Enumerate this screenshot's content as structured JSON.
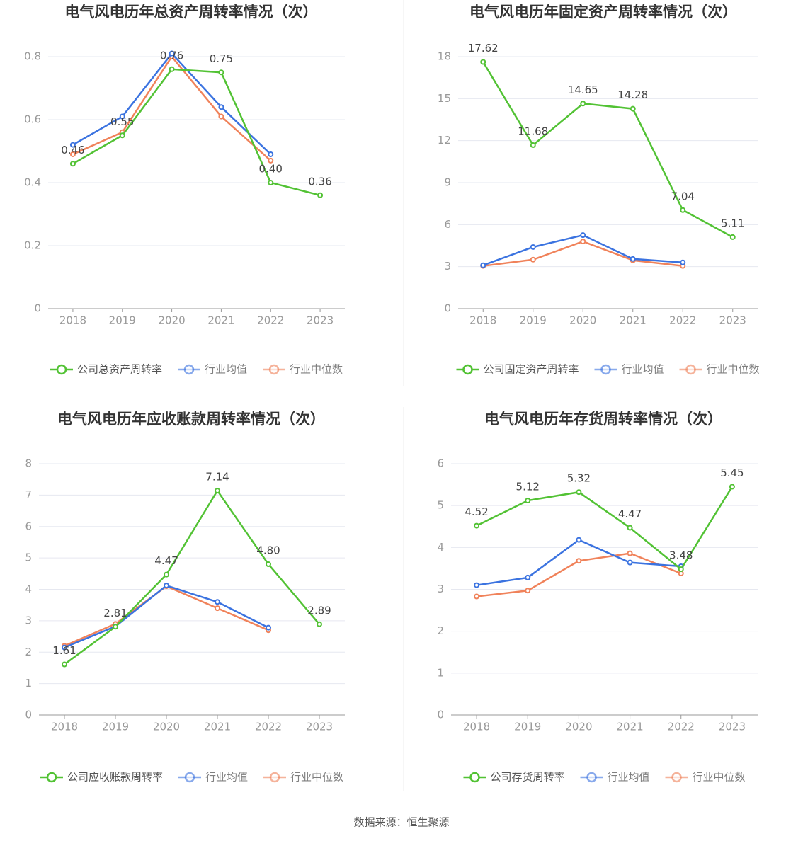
{
  "chart_data": [
    {
      "type": "line",
      "title": "电气风电历年总资产周转率情况（次）",
      "categories": [
        "2018",
        "2019",
        "2020",
        "2021",
        "2022",
        "2023"
      ],
      "series": [
        {
          "name": "公司总资产周转率",
          "color": "#52c234",
          "values": [
            0.46,
            0.55,
            0.76,
            0.75,
            0.4,
            0.36
          ],
          "value_labels": [
            "0.46",
            "0.55",
            "0.76",
            "0.75",
            "0.40",
            "0.36"
          ]
        },
        {
          "name": "行业均值",
          "color": "#3b73e0",
          "values": [
            0.52,
            0.61,
            0.81,
            0.64,
            0.49,
            null
          ]
        },
        {
          "name": "行业中位数",
          "color": "#f0825a",
          "values": [
            0.49,
            0.56,
            0.8,
            0.61,
            0.47,
            null
          ]
        }
      ],
      "ylim": [
        0,
        0.8
      ],
      "yticks": [
        0,
        0.2,
        0.4,
        0.6,
        0.8
      ],
      "grid": true
    },
    {
      "type": "line",
      "title": "电气风电历年固定资产周转率情况（次）",
      "categories": [
        "2018",
        "2019",
        "2020",
        "2021",
        "2022",
        "2023"
      ],
      "series": [
        {
          "name": "公司固定资产周转率",
          "color": "#52c234",
          "values": [
            17.62,
            11.68,
            14.65,
            14.28,
            7.04,
            5.11
          ]
        },
        {
          "name": "行业均值",
          "color": "#3b73e0",
          "values": [
            3.1,
            4.4,
            5.25,
            3.55,
            3.3,
            null
          ]
        },
        {
          "name": "行业中位数",
          "color": "#f0825a",
          "values": [
            3.05,
            3.5,
            4.8,
            3.45,
            3.05,
            null
          ]
        }
      ],
      "ylim": [
        0,
        18
      ],
      "yticks": [
        0,
        3,
        6,
        9,
        12,
        15,
        18
      ],
      "grid": true
    },
    {
      "type": "line",
      "title": "电气风电历年应收账款周转率情况（次）",
      "categories": [
        "2018",
        "2019",
        "2020",
        "2021",
        "2022",
        "2023"
      ],
      "series": [
        {
          "name": "公司应收账款周转率",
          "color": "#52c234",
          "values": [
            1.61,
            2.81,
            4.47,
            7.14,
            4.8,
            2.89
          ],
          "value_labels": [
            "1.61",
            "2.81",
            "4.47",
            "7.14",
            "4.80",
            "2.89"
          ]
        },
        {
          "name": "行业均值",
          "color": "#3b73e0",
          "values": [
            2.15,
            2.82,
            4.12,
            3.6,
            2.78,
            null
          ]
        },
        {
          "name": "行业中位数",
          "color": "#f0825a",
          "values": [
            2.2,
            2.9,
            4.1,
            3.4,
            2.7,
            null
          ]
        }
      ],
      "ylim": [
        0,
        8
      ],
      "yticks": [
        0,
        1,
        2,
        3,
        4,
        5,
        6,
        7,
        8
      ],
      "grid": true
    },
    {
      "type": "line",
      "title": "电气风电历年存货周转率情况（次）",
      "categories": [
        "2018",
        "2019",
        "2020",
        "2021",
        "2022",
        "2023"
      ],
      "series": [
        {
          "name": "公司存货周转率",
          "color": "#52c234",
          "values": [
            4.52,
            5.12,
            5.32,
            4.47,
            3.48,
            5.45
          ]
        },
        {
          "name": "行业均值",
          "color": "#3b73e0",
          "values": [
            3.1,
            3.28,
            4.18,
            3.64,
            3.55,
            null
          ]
        },
        {
          "name": "行业中位数",
          "color": "#f0825a",
          "values": [
            2.83,
            2.97,
            3.68,
            3.86,
            3.38,
            null
          ]
        }
      ],
      "ylim": [
        0,
        6
      ],
      "yticks": [
        0,
        1,
        2,
        3,
        4,
        5,
        6
      ],
      "grid": true
    }
  ],
  "source": "数据来源：恒生聚源"
}
